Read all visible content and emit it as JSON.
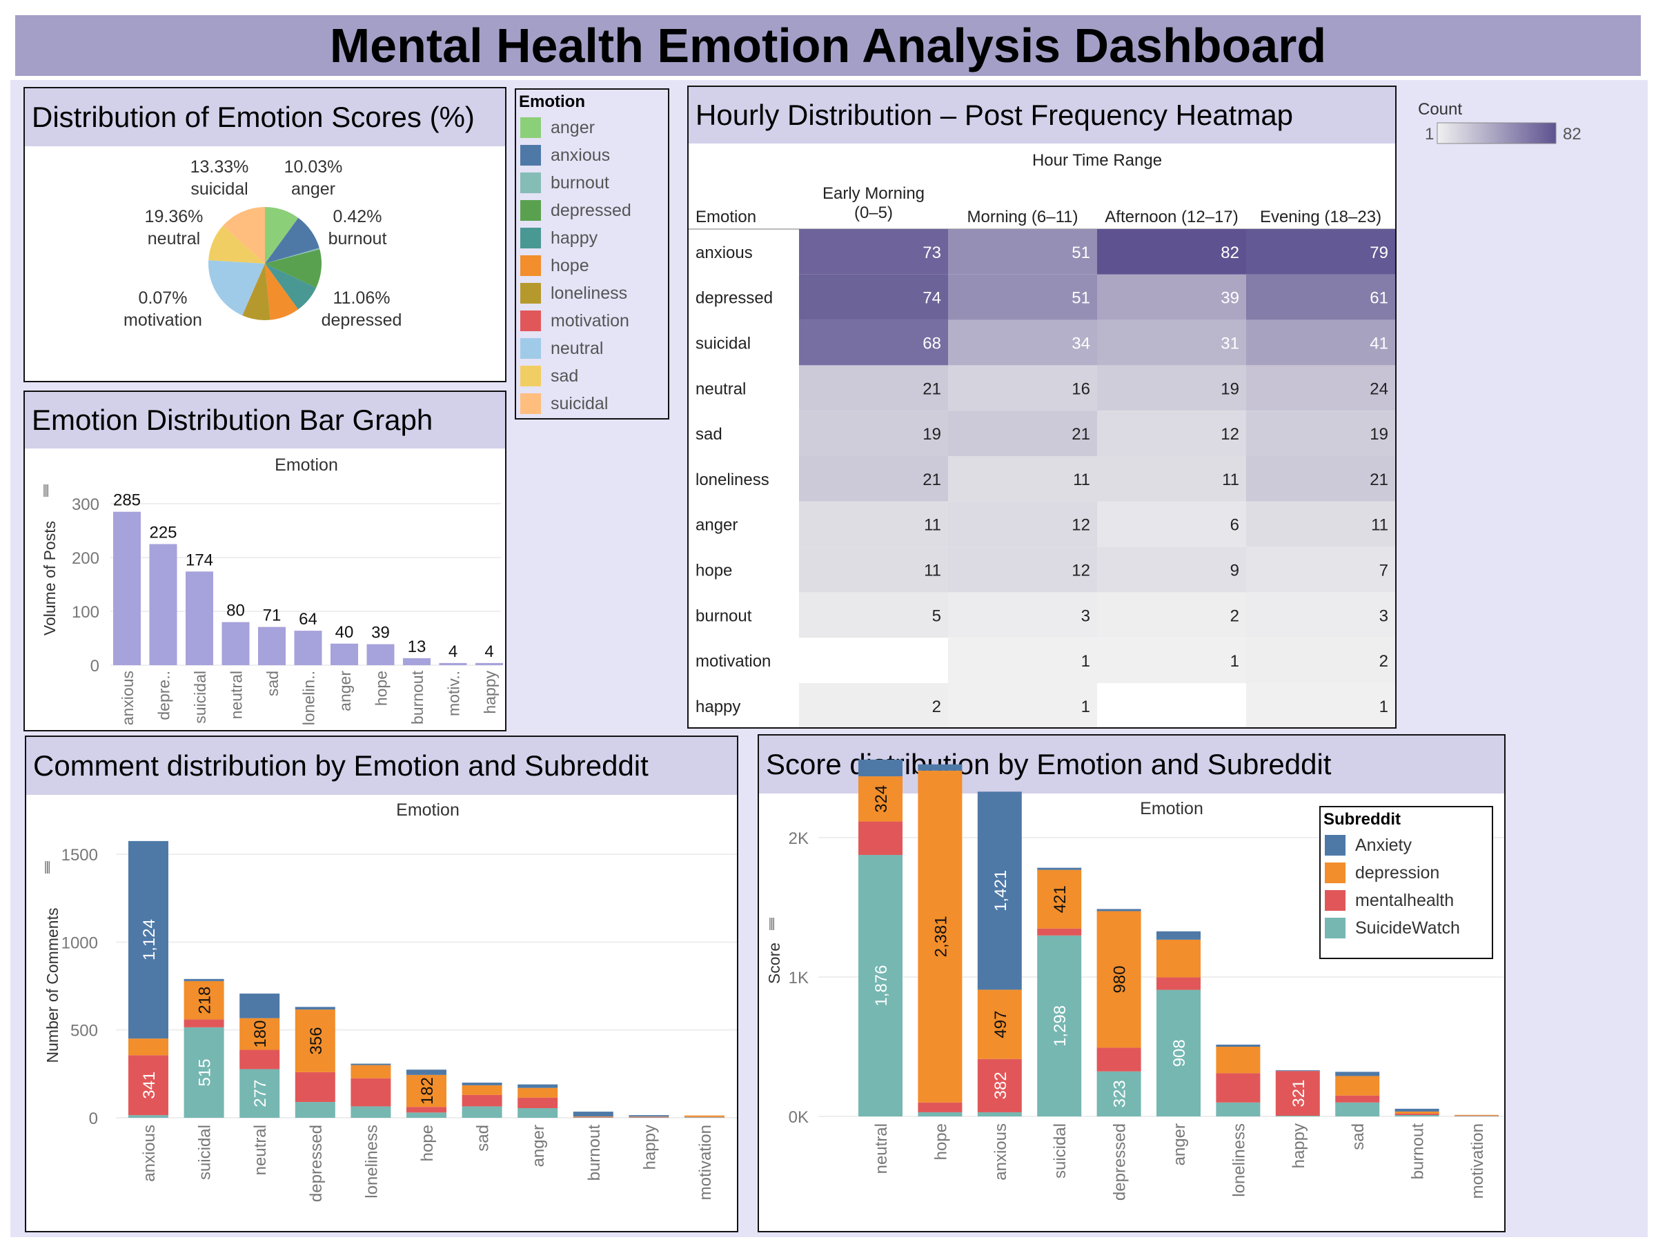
{
  "title": "Mental Health Emotion Analysis Dashboard",
  "colors": {
    "anger": "#8ccf79",
    "anxious": "#4e79a7",
    "burnout": "#86bcb6",
    "depressed": "#59a14f",
    "happy": "#499894",
    "hope": "#f28e2b",
    "loneliness": "#b6992d",
    "motivation": "#e15759",
    "neutral": "#a0cbe8",
    "sad": "#f1ce63",
    "suicidal": "#ffbe7d",
    "Anxiety": "#4e79a7",
    "depression": "#f28e2b",
    "mentalhealth": "#e15759",
    "SuicideWatch": "#76b7b2",
    "bar": "#a6a2db",
    "heat_low": "#f0f0f0",
    "heat_high": "#5e5390"
  },
  "pie": {
    "title": "Distribution of Emotion Scores (%)",
    "labels": [
      {
        "pct": "13.33%",
        "name": "suicidal"
      },
      {
        "pct": "10.03%",
        "name": "anger"
      },
      {
        "pct": "19.36%",
        "name": "neutral"
      },
      {
        "pct": "0.42%",
        "name": "burnout"
      },
      {
        "pct": "0.07%",
        "name": "motivation"
      },
      {
        "pct": "11.06%",
        "name": "depressed"
      }
    ]
  },
  "emotion_legend": {
    "title": "Emotion",
    "items": [
      "anger",
      "anxious",
      "burnout",
      "depressed",
      "happy",
      "hope",
      "loneliness",
      "motivation",
      "neutral",
      "sad",
      "suicidal"
    ]
  },
  "bar": {
    "title": "Emotion Distribution Bar Graph",
    "subtitle": "Emotion",
    "ylabel": "Volume of Posts",
    "yticks": [
      "300",
      "200",
      "100",
      "0"
    ],
    "categories": [
      "anxious",
      "depre..",
      "suicidal",
      "neutral",
      "sad",
      "lonelin..",
      "anger",
      "hope",
      "burnout",
      "motiv..",
      "happy"
    ]
  },
  "heatmap": {
    "title": "Hourly Distribution – Post Frequency Heatmap",
    "col_header": "Hour Time Range",
    "row_header": "Emotion",
    "columns": [
      "Early Morning (0–5)",
      "Morning (6–11)",
      "Afternoon (12–17)",
      "Evening (18–23)"
    ],
    "col_line1": [
      "Early Morning",
      "Morning (6–11)",
      "Afternoon (12–17)",
      "Evening (18–23)"
    ],
    "col_line2": [
      "(0–5)",
      "",
      "",
      ""
    ],
    "rows": [
      "anxious",
      "depressed",
      "suicidal",
      "neutral",
      "sad",
      "loneliness",
      "anger",
      "hope",
      "burnout",
      "motivation",
      "happy"
    ],
    "legend_title": "Count",
    "legend_min": "1",
    "legend_max": "82"
  },
  "comment": {
    "title": "Comment distribution by Emotion and Subreddit",
    "subtitle": "Emotion",
    "ylabel": "Number of Comments",
    "yticks": [
      "1500",
      "1000",
      "500",
      "0"
    ]
  },
  "score": {
    "title": "Score distribution by Emotion and Subreddit",
    "subtitle": "Emotion",
    "ylabel": "Score",
    "yticks": [
      "2K",
      "1K",
      "0K"
    ],
    "legend_title": "Subreddit",
    "legend_items": [
      "Anxiety",
      "depression",
      "mentalhealth",
      "SuicideWatch"
    ]
  },
  "chart_data": [
    {
      "type": "pie",
      "title": "Distribution of Emotion Scores (%)",
      "categories": [
        "anger",
        "anxious",
        "burnout",
        "depressed",
        "happy",
        "hope",
        "loneliness",
        "motivation",
        "neutral",
        "sad",
        "suicidal"
      ],
      "values": [
        10.03,
        10.5,
        0.42,
        11.06,
        8.0,
        8.5,
        8.0,
        0.07,
        19.36,
        10.73,
        13.33
      ]
    },
    {
      "type": "bar",
      "title": "Emotion Distribution Bar Graph",
      "xlabel": "Emotion",
      "ylabel": "Volume of Posts",
      "ylim": [
        0,
        300
      ],
      "categories": [
        "anxious",
        "depressed",
        "suicidal",
        "neutral",
        "sad",
        "loneliness",
        "anger",
        "hope",
        "burnout",
        "motivation",
        "happy"
      ],
      "values": [
        285,
        225,
        174,
        80,
        71,
        64,
        40,
        39,
        13,
        4,
        4
      ]
    },
    {
      "type": "heatmap",
      "title": "Hourly Distribution – Post Frequency Heatmap",
      "xlabel": "Hour Time Range",
      "ylabel": "Emotion",
      "x": [
        "Early Morning (0–5)",
        "Morning (6–11)",
        "Afternoon (12–17)",
        "Evening (18–23)"
      ],
      "y": [
        "anxious",
        "depressed",
        "suicidal",
        "neutral",
        "sad",
        "loneliness",
        "anger",
        "hope",
        "burnout",
        "motivation",
        "happy"
      ],
      "values": [
        [
          73,
          51,
          82,
          79
        ],
        [
          74,
          51,
          39,
          61
        ],
        [
          68,
          34,
          31,
          41
        ],
        [
          21,
          16,
          19,
          24
        ],
        [
          19,
          21,
          12,
          19
        ],
        [
          21,
          11,
          11,
          21
        ],
        [
          11,
          12,
          6,
          11
        ],
        [
          11,
          12,
          9,
          7
        ],
        [
          5,
          3,
          2,
          3
        ],
        [
          null,
          1,
          1,
          2
        ],
        [
          2,
          1,
          null,
          1
        ]
      ]
    },
    {
      "type": "bar",
      "stacked": true,
      "title": "Comment distribution by Emotion and Subreddit",
      "xlabel": "Emotion",
      "ylabel": "Number of Comments",
      "ylim": [
        0,
        1600
      ],
      "categories": [
        "anxious",
        "suicidal",
        "neutral",
        "depressed",
        "loneliness",
        "hope",
        "sad",
        "anger",
        "burnout",
        "happy",
        "motivation"
      ],
      "series": [
        {
          "name": "SuicideWatch",
          "values": [
            15,
            515,
            277,
            90,
            65,
            30,
            65,
            55,
            2,
            2,
            3
          ]
        },
        {
          "name": "mentalhealth",
          "values": [
            341,
            45,
            110,
            170,
            160,
            32,
            65,
            60,
            3,
            3,
            2
          ]
        },
        {
          "name": "depression",
          "values": [
            95,
            218,
            180,
            356,
            75,
            182,
            55,
            55,
            3,
            2,
            8
          ]
        },
        {
          "name": "Anxiety",
          "values": [
            1124,
            12,
            140,
            15,
            8,
            30,
            15,
            20,
            27,
            8,
            0
          ]
        }
      ],
      "labeled": [
        {
          "category": "anxious",
          "series": "Anxiety",
          "label": "1,124"
        },
        {
          "category": "anxious",
          "series": "mentalhealth",
          "label": "341"
        },
        {
          "category": "suicidal",
          "series": "SuicideWatch",
          "label": "515"
        },
        {
          "category": "suicidal",
          "series": "depression",
          "label": "218"
        },
        {
          "category": "neutral",
          "series": "SuicideWatch",
          "label": "277"
        },
        {
          "category": "neutral",
          "series": "depression",
          "label": "180"
        },
        {
          "category": "depressed",
          "series": "depression",
          "label": "356"
        },
        {
          "category": "hope",
          "series": "depression",
          "label": "182"
        }
      ]
    },
    {
      "type": "bar",
      "stacked": true,
      "title": "Score distribution by Emotion and Subreddit",
      "xlabel": "Emotion",
      "ylabel": "Score",
      "ylim": [
        0,
        2600
      ],
      "categories": [
        "neutral",
        "hope",
        "anxious",
        "suicidal",
        "depressed",
        "anger",
        "loneliness",
        "happy",
        "sad",
        "burnout",
        "motivation"
      ],
      "series": [
        {
          "name": "SuicideWatch",
          "values": [
            1876,
            30,
            30,
            1298,
            323,
            908,
            100,
            5,
            100,
            10,
            3
          ]
        },
        {
          "name": "mentalhealth",
          "values": [
            240,
            70,
            382,
            50,
            170,
            90,
            210,
            321,
            50,
            10,
            3
          ]
        },
        {
          "name": "depression",
          "values": [
            324,
            2381,
            497,
            421,
            980,
            270,
            190,
            0,
            140,
            15,
            5
          ]
        },
        {
          "name": "Anxiety",
          "values": [
            120,
            45,
            1421,
            15,
            15,
            60,
            15,
            5,
            30,
            20,
            0
          ]
        }
      ],
      "labeled": [
        {
          "category": "neutral",
          "series": "SuicideWatch",
          "label": "1,876"
        },
        {
          "category": "neutral",
          "series": "depression",
          "label": "324"
        },
        {
          "category": "hope",
          "series": "depression",
          "label": "2,381"
        },
        {
          "category": "anxious",
          "series": "Anxiety",
          "label": "1,421"
        },
        {
          "category": "anxious",
          "series": "depression",
          "label": "497"
        },
        {
          "category": "anxious",
          "series": "mentalhealth",
          "label": "382"
        },
        {
          "category": "suicidal",
          "series": "SuicideWatch",
          "label": "1,298"
        },
        {
          "category": "suicidal",
          "series": "depression",
          "label": "421"
        },
        {
          "category": "depressed",
          "series": "depression",
          "label": "980"
        },
        {
          "category": "depressed",
          "series": "SuicideWatch",
          "label": "323"
        },
        {
          "category": "anger",
          "series": "SuicideWatch",
          "label": "908"
        },
        {
          "category": "happy",
          "series": "mentalhealth",
          "label": "321"
        }
      ]
    }
  ]
}
